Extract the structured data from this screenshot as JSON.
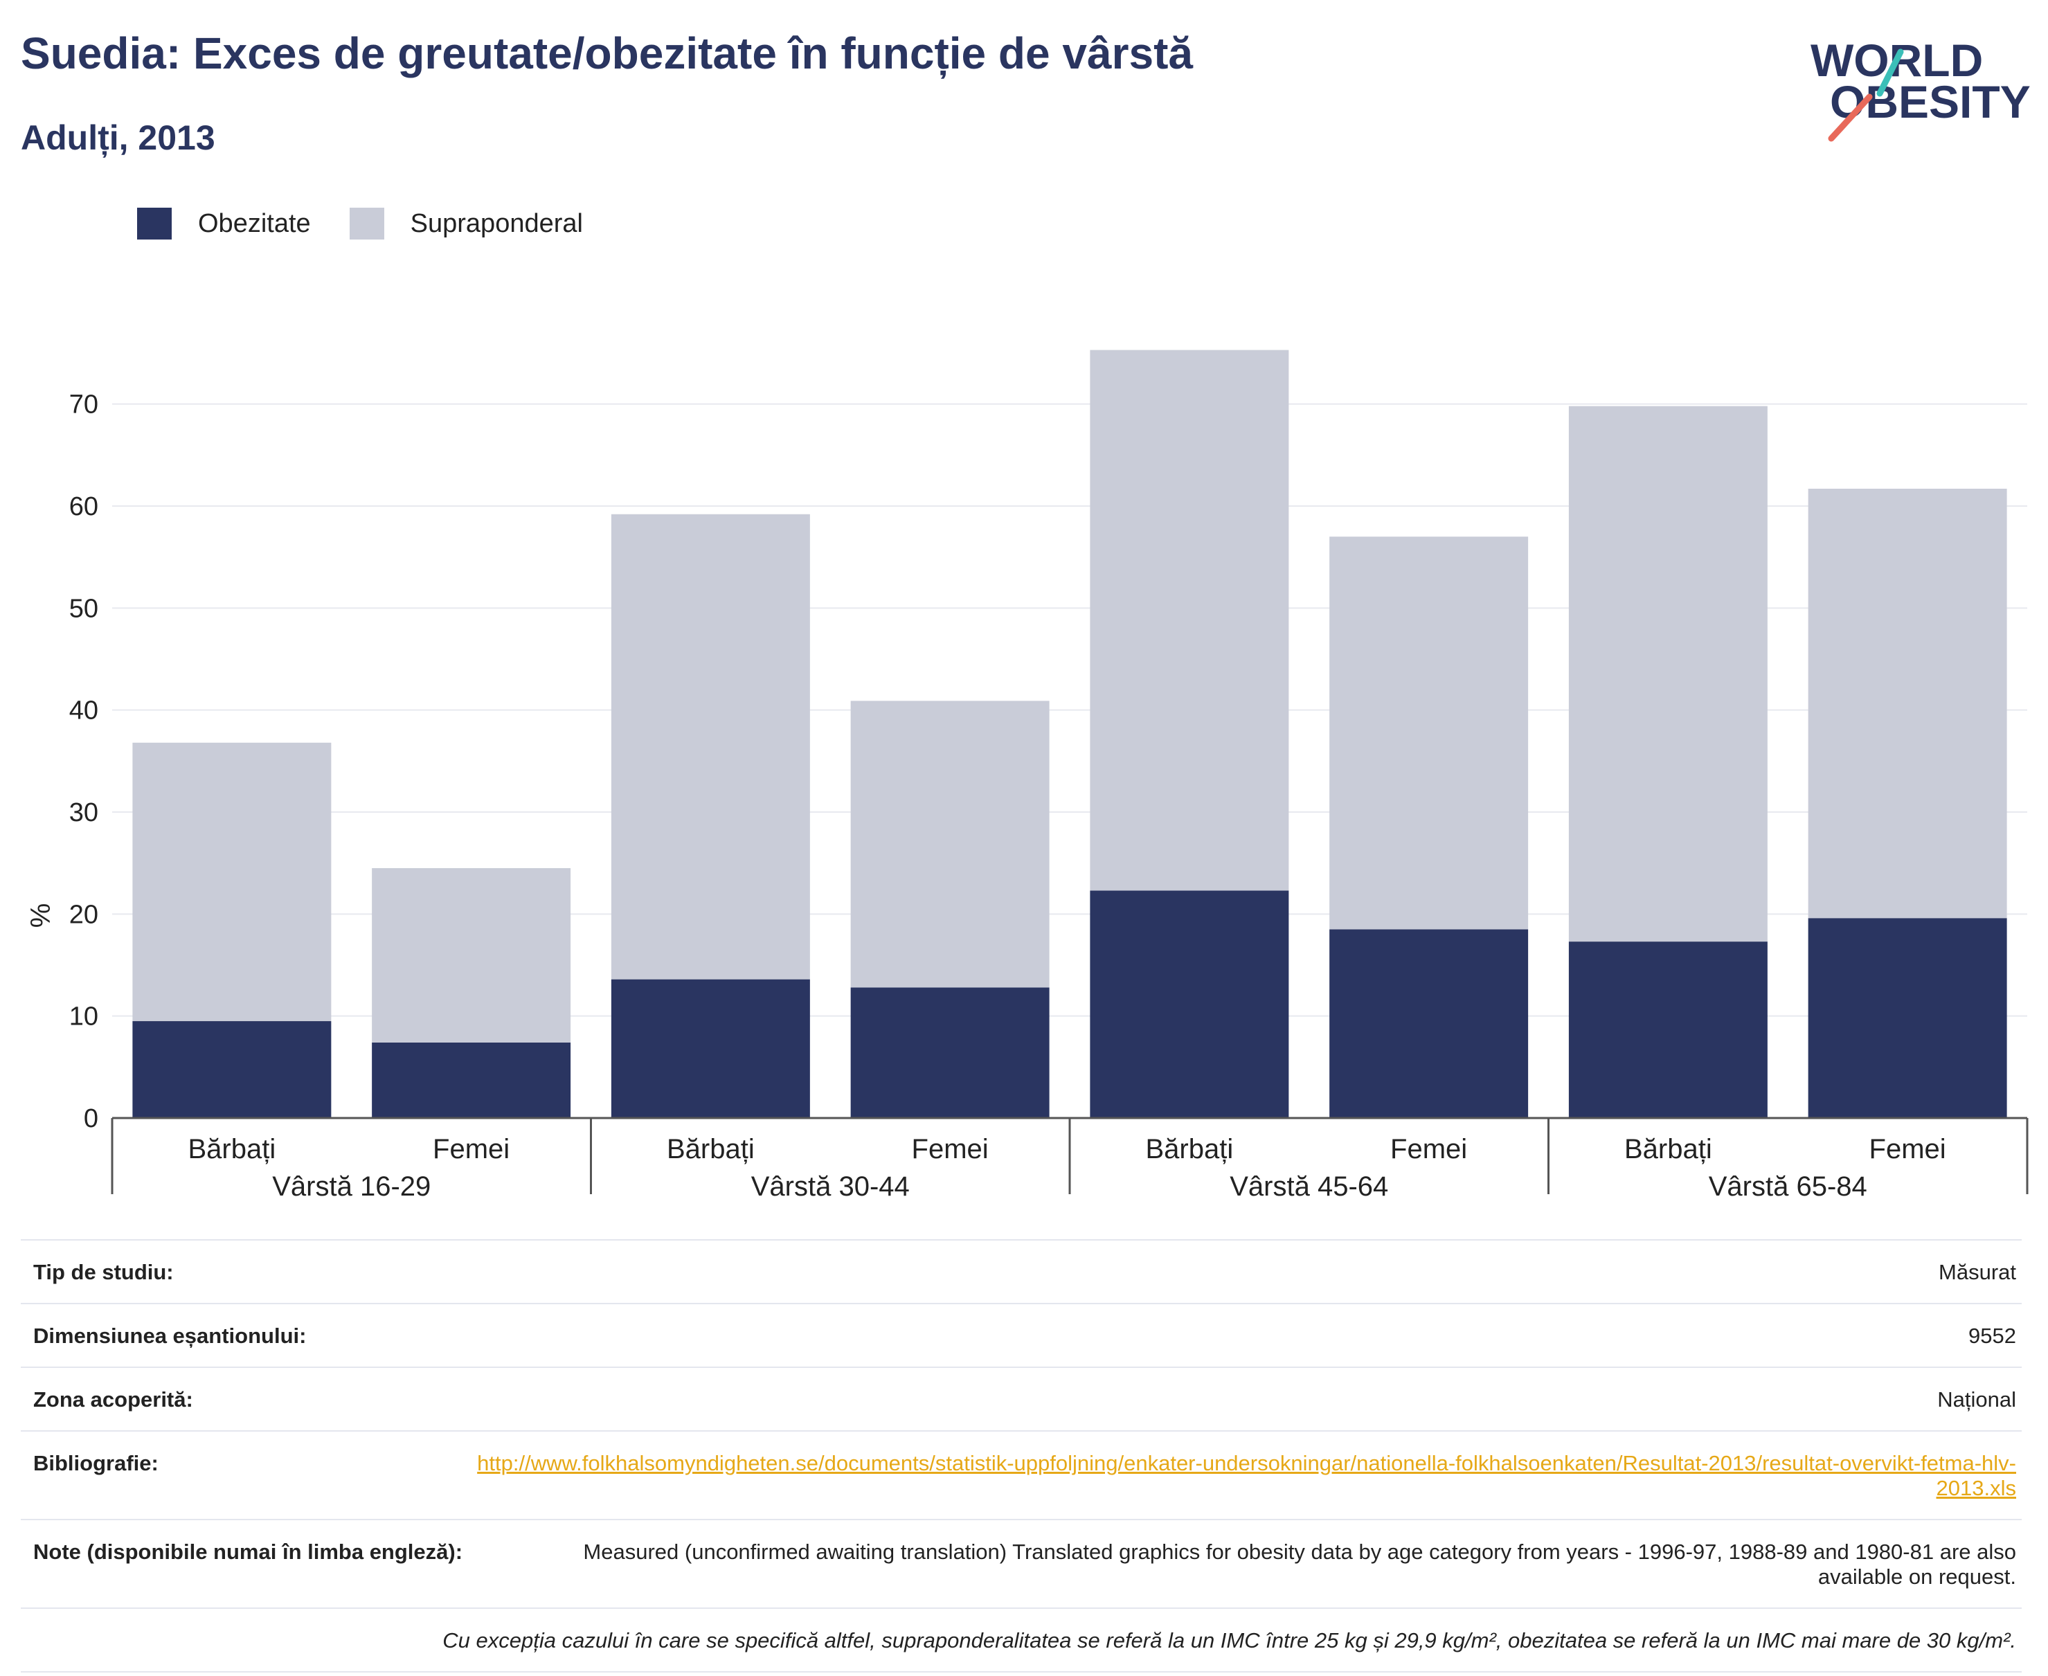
{
  "header": {
    "title": "Suedia: Exces de greutate/obezitate în funcție de vârstă",
    "subtitle": "Adulți, 2013"
  },
  "logo": {
    "line1": "WORLD",
    "line2": "OBESITY",
    "icon": "world-obesity-logo"
  },
  "colors": {
    "obesity": "#2a3561",
    "overweight": "#c9ccd8",
    "text": "#2a3560",
    "link": "#e6a817"
  },
  "chart_data": {
    "type": "bar",
    "stacked": true,
    "ylabel": "%",
    "ylim": [
      0,
      75
    ],
    "yticks": [
      0,
      10,
      20,
      30,
      40,
      50,
      60,
      70
    ],
    "grid": true,
    "legend_placement": "top-left",
    "groups": [
      "Vârstă 16-29",
      "Vârstă 30-44",
      "Vârstă 45-64",
      "Vârstă 65-84"
    ],
    "categories": [
      "Bărbați",
      "Femei",
      "Bărbați",
      "Femei",
      "Bărbați",
      "Femei",
      "Bărbați",
      "Femei"
    ],
    "series": [
      {
        "name": "Obezitate",
        "values": [
          9.5,
          7.4,
          13.6,
          12.8,
          22.3,
          18.5,
          17.3,
          19.6
        ]
      },
      {
        "name": "Supraponderal",
        "values": [
          27.3,
          17.1,
          45.6,
          28.1,
          53.0,
          38.5,
          52.5,
          42.1
        ]
      }
    ]
  },
  "info": {
    "study_type_label": "Tip de studiu:",
    "study_type_value": "Măsurat",
    "sample_size_label": "Dimensiunea eșantionului:",
    "sample_size_value": "9552",
    "coverage_label": "Zona acoperită:",
    "coverage_value": "Național",
    "bibliography_label": "Bibliografie:",
    "bibliography_value": "http://www.folkhalsomyndigheten.se/documents/statistik-uppfoljning/enkater-undersokningar/nationella-folkhalsoenkaten/Resultat-2013/resultat-overvikt-fetma-hlv-2013.xls",
    "notes_label": "Note (disponibile numai în limba engleză):",
    "notes_value": "Measured (unconfirmed awaiting translation) Translated graphics for obesity data by age category from years - 1996-97, 1988-89 and 1980-81 are also available on request.",
    "footnote": "Cu excepția cazului în care se specifică altfel, supraponderalitatea se referă la un IMC între 25 kg și 29,9 kg/m², obezitatea se referă la un IMC mai mare de 30 kg/m²."
  }
}
